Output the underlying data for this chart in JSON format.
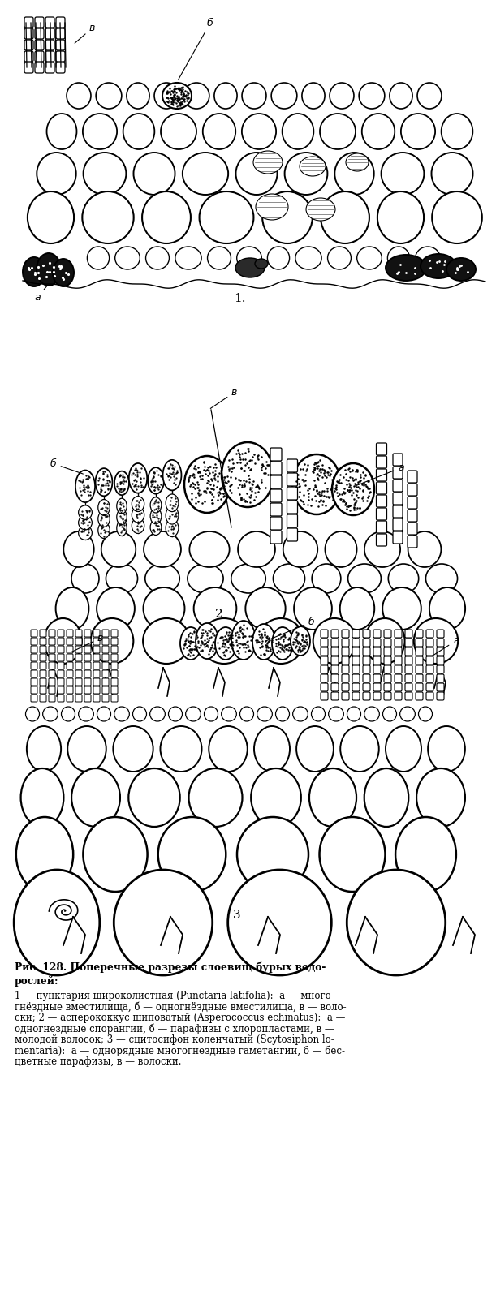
{
  "fig_width": 6.11,
  "fig_height": 16.01,
  "caption_bold": "Рис. 128. Поперечные разрезы слоевищ бурых водо-\nрослей:",
  "caption_lines": [
    "1 — пунктария широколистная (Punctaria latifolia):  а — много-",
    "гнёздные вместилища, б — одногнёздные вместилища, в — воло-",
    "ски; 2 — асперококкус шиповатый (Asperococcus echinatus):  а —",
    "одногнездные спорангии, б — парафизы с хлоропластами, в —",
    "молодой волосок; 3 — сцитосифон коленчатый (Scytosiphon lo-",
    "mentaria):  а — однорядные многогнездные гаметангии, б — бес-",
    "цветные парафизы, в — волоски."
  ],
  "bg_color": "#ffffff"
}
